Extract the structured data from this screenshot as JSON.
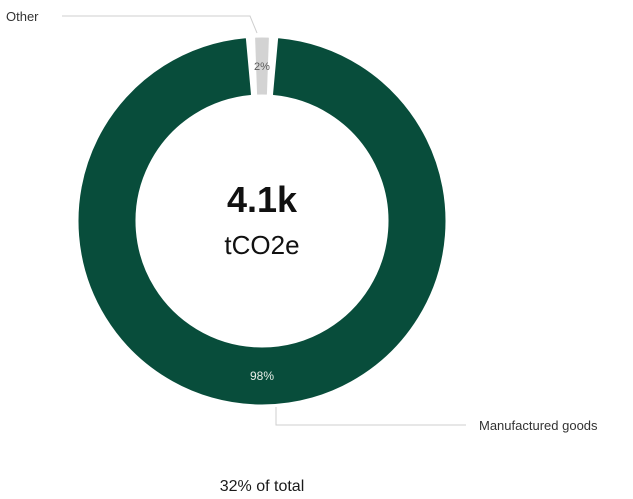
{
  "chart_data": {
    "type": "pie",
    "variant": "donut",
    "categories": [
      "Other",
      "Manufactured goods"
    ],
    "values": [
      2,
      98
    ],
    "value_labels": [
      "2%",
      "98%"
    ],
    "colors": [
      "#d3d3d3",
      "#084d3b"
    ],
    "center": {
      "value": "4.1k",
      "unit": "tCO2e"
    },
    "legend": "none"
  },
  "footer": {
    "text": "32% of total"
  }
}
